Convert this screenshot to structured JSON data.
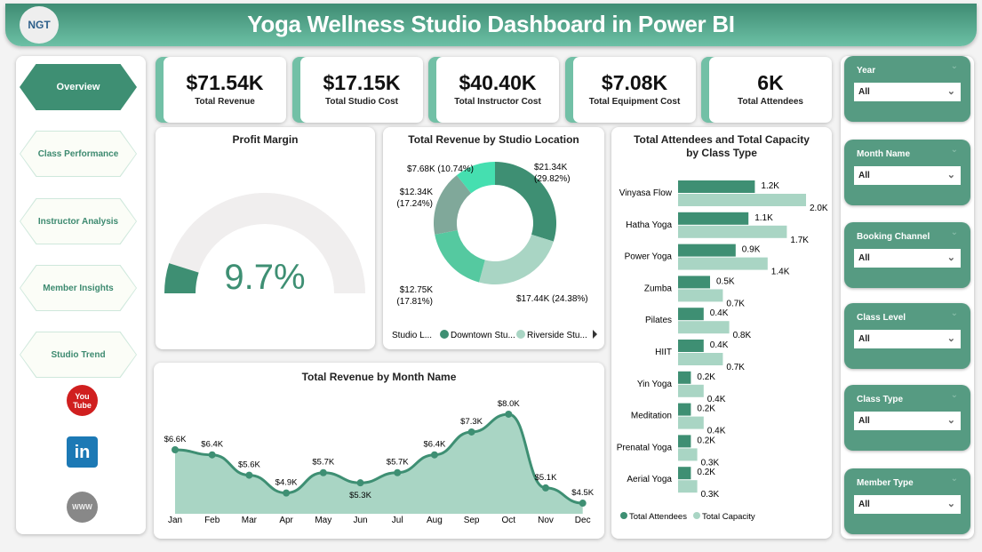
{
  "header": {
    "title": "Yoga Wellness Studio Dashboard in Power BI",
    "logo_text": "NGT"
  },
  "nav": {
    "items": [
      {
        "label": "Overview",
        "active": true
      },
      {
        "label": "Class Performance"
      },
      {
        "label": "Instructor Analysis"
      },
      {
        "label": "Member Insights"
      },
      {
        "label": "Studio Trend"
      }
    ],
    "social": [
      {
        "icon": "youtube-icon",
        "label": "You Tube"
      },
      {
        "icon": "linkedin-icon",
        "label": "in"
      },
      {
        "icon": "globe-icon",
        "label": "WWW"
      }
    ]
  },
  "kpis": [
    {
      "value": "$71.54K",
      "label": "Total Revenue"
    },
    {
      "value": "$17.15K",
      "label": "Total Studio Cost"
    },
    {
      "value": "$40.40K",
      "label": "Total Instructor Cost"
    },
    {
      "value": "$7.08K",
      "label": "Total Equipment Cost"
    },
    {
      "value": "6K",
      "label": "Total Attendees"
    }
  ],
  "colors": {
    "accent": "#3e8f73",
    "light": "#a9d5c4",
    "header": "#569b82"
  },
  "filters": [
    {
      "label": "Year",
      "value": "All"
    },
    {
      "label": "Month Name",
      "value": "All"
    },
    {
      "label": "Booking Channel",
      "value": "All"
    },
    {
      "label": "Class Level",
      "value": "All"
    },
    {
      "label": "Class Type",
      "value": "All"
    },
    {
      "label": "Member Type",
      "value": "All"
    }
  ],
  "chart_data": [
    {
      "type": "gauge",
      "title": "Profit Margin",
      "value": 9.7,
      "value_label": "9.7%",
      "range": [
        0,
        100
      ]
    },
    {
      "type": "pie",
      "title": "Total Revenue by Studio Location",
      "legend_title": "Studio L...",
      "legend": [
        "Downtown Stu...",
        "Riverside Stu..."
      ],
      "legend_placement": "bottom",
      "slices": [
        {
          "value": 21.34,
          "label": "$21.34K",
          "pct": "(29.82%)",
          "color": "#3e8f73"
        },
        {
          "value": 17.44,
          "label": "$17.44K",
          "pct": "(24.38%)",
          "color": "#a9d5c4"
        },
        {
          "value": 12.75,
          "label": "$12.75K",
          "pct": "(17.81%)",
          "color": "#55c9a0"
        },
        {
          "value": 12.34,
          "label": "$12.34K",
          "pct": "(17.24%)",
          "color": "#80a89a"
        },
        {
          "value": 7.68,
          "label": "$7.68K",
          "pct": "(10.74%)",
          "color": "#45dfb0"
        }
      ]
    },
    {
      "type": "bar",
      "title": "Total Attendees and Total Capacity by Class Type",
      "orientation": "horizontal",
      "legend_placement": "bottom",
      "categories": [
        "Vinyasa Flow",
        "Hatha Yoga",
        "Power Yoga",
        "Zumba",
        "Pilates",
        "HIIT",
        "Yin Yoga",
        "Meditation",
        "Prenatal Yoga",
        "Aerial Yoga"
      ],
      "series": [
        {
          "name": "Total Attendees",
          "color": "#3e8f73",
          "values": [
            1.2,
            1.1,
            0.9,
            0.5,
            0.4,
            0.4,
            0.2,
            0.2,
            0.2,
            0.2
          ],
          "labels": [
            "1.2K",
            "1.1K",
            "0.9K",
            "0.5K",
            "0.4K",
            "0.4K",
            "0.2K",
            "0.2K",
            "0.2K",
            "0.2K"
          ]
        },
        {
          "name": "Total Capacity",
          "color": "#a9d5c4",
          "values": [
            2.0,
            1.7,
            1.4,
            0.7,
            0.8,
            0.7,
            0.4,
            0.4,
            0.3,
            0.3
          ],
          "labels": [
            "2.0K",
            "1.7K",
            "1.4K",
            "0.7K",
            "0.8K",
            "0.7K",
            "0.4K",
            "0.4K",
            "0.3K",
            "0.3K"
          ]
        }
      ]
    },
    {
      "type": "area",
      "title": "Total Revenue by Month Name",
      "categories": [
        "Jan",
        "Feb",
        "Mar",
        "Apr",
        "May",
        "Jun",
        "Jul",
        "Aug",
        "Sep",
        "Oct",
        "Nov",
        "Dec"
      ],
      "values": [
        6.6,
        6.4,
        5.6,
        4.9,
        5.7,
        5.3,
        5.7,
        6.4,
        7.3,
        8.0,
        5.1,
        4.5
      ],
      "labels": [
        "$6.6K",
        "$6.4K",
        "$5.6K",
        "$4.9K",
        "$5.7K",
        "$5.3K",
        "$5.7K",
        "$6.4K",
        "$7.3K",
        "$8.0K",
        "$5.1K",
        "$4.5K"
      ],
      "color": "#3e8f73"
    }
  ]
}
